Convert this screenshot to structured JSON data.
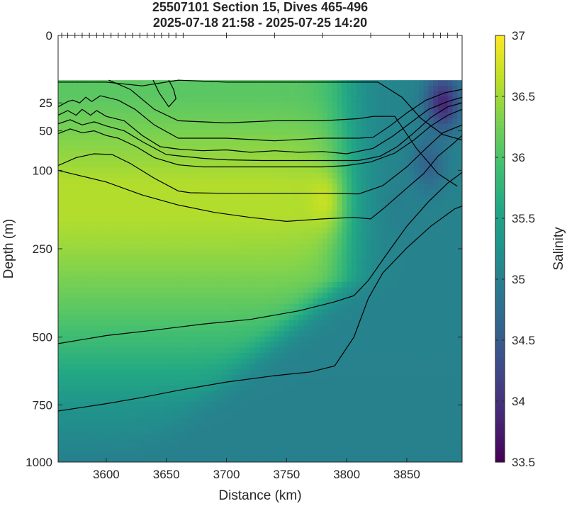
{
  "chart_data": {
    "type": "heatmap",
    "title": "25507101 Section 15, Dives 465-496",
    "subtitle": "2025-07-18 21:58 - 2025-07-25 14:20",
    "xlabel": "Distance (km)",
    "ylabel": "Depth (m)",
    "colorbar_label": "Salinity",
    "xlim": [
      3560,
      3896
    ],
    "ylim": [
      0,
      1000
    ],
    "y_scale": "sqrt",
    "x_ticks": [
      3600,
      3650,
      3700,
      3750,
      3800,
      3850
    ],
    "x_tick_labels": [
      "3600",
      "3650",
      "3700",
      "3750",
      "3800",
      "3850"
    ],
    "y_ticks": [
      0,
      25,
      50,
      100,
      250,
      500,
      750,
      1000
    ],
    "y_tick_labels": [
      "0",
      "25",
      "50",
      "100",
      "250",
      "500",
      "750",
      "1000"
    ],
    "clim": [
      33.5,
      37
    ],
    "colorbar_ticks": [
      33.5,
      34,
      34.5,
      35,
      35.5,
      36,
      36.5,
      37
    ],
    "colorbar_tick_labels": [
      "33.5",
      "34",
      "34.5",
      "35",
      "35.5",
      "36",
      "36.5",
      "37"
    ],
    "colormap": "viridis",
    "no_data_above_depth_m": 11,
    "dive_positions_km": [
      3563,
      3568,
      3574,
      3580,
      3586,
      3592,
      3598,
      3604,
      3610,
      3616,
      3622,
      3628,
      3634,
      3640,
      3646,
      3652,
      3658,
      3664,
      3700,
      3740,
      3780,
      3820,
      3852,
      3864,
      3872,
      3878,
      3884,
      3892
    ],
    "salinity_profile_core": [
      {
        "depth_m": 20,
        "salinity": 36.1
      },
      {
        "depth_m": 60,
        "salinity": 36.35
      },
      {
        "depth_m": 120,
        "salinity": 36.6
      },
      {
        "depth_m": 180,
        "salinity": 36.6
      },
      {
        "depth_m": 300,
        "salinity": 36.35
      },
      {
        "depth_m": 500,
        "salinity": 35.9
      },
      {
        "depth_m": 750,
        "salinity": 35.3
      },
      {
        "depth_m": 1000,
        "salinity": 35.0
      }
    ],
    "features": [
      {
        "label": "low-salinity core",
        "x_km": 3880,
        "depth_m": 25,
        "salinity": 33.9
      },
      {
        "label": "low-salinity patch",
        "x_km": 3868,
        "depth_m": 90,
        "salinity": 34.6
      },
      {
        "label": "low-salinity patch",
        "x_km": 3845,
        "depth_m": 160,
        "salinity": 35.0
      },
      {
        "label": "high-salinity core",
        "x_km": 3780,
        "depth_m": 150,
        "salinity": 36.7
      }
    ],
    "contours": [
      {
        "x": [
          3560,
          3568,
          3572,
          3578,
          3583,
          3588,
          3595,
          3610,
          3624,
          3640,
          3660,
          3700,
          3740,
          3780,
          3810,
          3822,
          3836,
          3850,
          3866,
          3882,
          3896
        ],
        "y": [
          28,
          24,
          23,
          25,
          21,
          24,
          20,
          23,
          30,
          44,
          58,
          58,
          61,
          58,
          58,
          57,
          45,
          33,
          23,
          18,
          16
        ]
      },
      {
        "x": [
          3560,
          3568,
          3575,
          3580,
          3587,
          3592,
          3600,
          3615,
          3630,
          3645,
          3660,
          3680,
          3700,
          3720,
          3740,
          3760,
          3780,
          3800,
          3822,
          3838,
          3853,
          3868,
          3884,
          3896
        ],
        "y": [
          35,
          31,
          35,
          30,
          35,
          31,
          36,
          40,
          55,
          68,
          71,
          73,
          72,
          75,
          73,
          75,
          74,
          77,
          70,
          56,
          42,
          30,
          24,
          21
        ]
      },
      {
        "x": [
          3560,
          3570,
          3580,
          3590,
          3600,
          3615,
          3630,
          3650,
          3680,
          3700,
          3730,
          3760,
          3790,
          3810,
          3828,
          3842,
          3856,
          3870,
          3884,
          3896
        ],
        "y": [
          43,
          39,
          44,
          41,
          45,
          50,
          62,
          78,
          83,
          85,
          86,
          86,
          86,
          86,
          80,
          68,
          52,
          37,
          28,
          25
        ]
      },
      {
        "x": [
          3560,
          3570,
          3580,
          3590,
          3600,
          3610,
          3625,
          3640,
          3660,
          3680,
          3700,
          3740,
          3780,
          3800,
          3820,
          3840,
          3856,
          3870,
          3884,
          3896
        ],
        "y": [
          53,
          48,
          52,
          50,
          55,
          58,
          68,
          82,
          92,
          95,
          95,
          95,
          95,
          93,
          88,
          76,
          60,
          45,
          35,
          30
        ]
      },
      {
        "x": [
          3560,
          3575,
          3590,
          3605,
          3620,
          3640,
          3660,
          3670,
          3700,
          3740,
          3780,
          3810,
          3830,
          3850,
          3866,
          3880,
          3896
        ],
        "y": [
          93,
          82,
          77,
          78,
          90,
          112,
          133,
          136,
          137,
          137,
          137,
          138,
          124,
          95,
          70,
          52,
          44
        ]
      },
      {
        "x": [
          3560,
          3600,
          3630,
          3660,
          3700,
          3740,
          3780,
          3810,
          3826,
          3846,
          3862,
          3880,
          3896
        ],
        "y": [
          12,
          12,
          14,
          11,
          12,
          12,
          12,
          12,
          12,
          21,
          38,
          54,
          60
        ]
      },
      {
        "x": [
          3639,
          3644,
          3652,
          3658,
          3656,
          3652
        ],
        "y": [
          11,
          18,
          28,
          22,
          16,
          11
        ]
      },
      {
        "x": [
          3602,
          3620,
          3640,
          3660,
          3700,
          3740,
          3780,
          3810,
          3822,
          3840,
          3858,
          3876,
          3892
        ],
        "y": [
          11,
          16,
          30,
          40,
          42,
          40,
          40,
          38,
          36,
          36,
          70,
          105,
          125
        ]
      },
      {
        "x": [
          3560,
          3600,
          3630,
          3660,
          3690,
          3720,
          3750,
          3780,
          3806,
          3820,
          3832,
          3850,
          3864,
          3876,
          3888,
          3896
        ],
        "y": [
          100,
          118,
          140,
          158,
          172,
          182,
          190,
          185,
          182,
          185,
          162,
          128,
          105,
          80,
          65,
          55
        ]
      },
      {
        "x": [
          3560,
          3600,
          3640,
          3680,
          3720,
          3760,
          3790,
          3806,
          3818,
          3834,
          3850,
          3868,
          3884,
          3896
        ],
        "y": [
          522,
          495,
          477,
          458,
          443,
          417,
          390,
          372,
          330,
          260,
          200,
          152,
          120,
          103
        ]
      },
      {
        "x": [
          3560,
          3580,
          3600,
          3630,
          3660,
          3700,
          3740,
          3770,
          3790,
          3806,
          3818,
          3830,
          3850,
          3870,
          3890,
          3896
        ],
        "y": [
          775,
          760,
          745,
          720,
          692,
          660,
          636,
          622,
          600,
          500,
          380,
          310,
          248,
          200,
          165,
          160
        ]
      }
    ]
  }
}
